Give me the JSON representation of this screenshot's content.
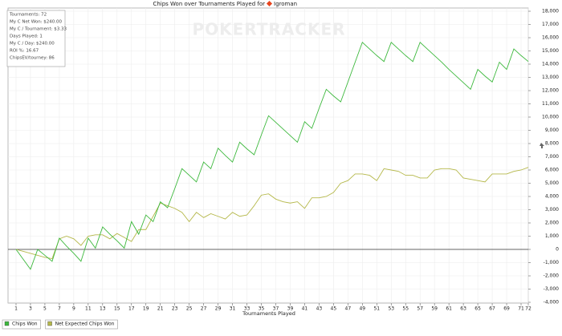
{
  "chart_data": {
    "type": "line",
    "title": "Chips Won over Tournaments Played for",
    "player": "Igroman",
    "watermark": "POKERTRACKER",
    "x_label": "Tournaments Played",
    "annotations": [
      "Tournaments: 72",
      "My C Net Won: $240.00",
      "My C / Tournament: $3.33",
      "Days Played: 1",
      "My C / Day: $240.00",
      "ROI %: 16.67",
      "ChipsEV/tourney: 86"
    ],
    "x": [
      1,
      2,
      3,
      4,
      5,
      6,
      7,
      8,
      9,
      10,
      11,
      12,
      13,
      14,
      15,
      16,
      17,
      18,
      19,
      20,
      21,
      22,
      23,
      24,
      25,
      26,
      27,
      28,
      29,
      30,
      31,
      32,
      33,
      34,
      35,
      36,
      37,
      38,
      39,
      40,
      41,
      42,
      43,
      44,
      45,
      46,
      47,
      48,
      49,
      50,
      51,
      52,
      53,
      54,
      55,
      56,
      57,
      58,
      59,
      60,
      61,
      62,
      63,
      64,
      65,
      66,
      67,
      68,
      69,
      70,
      71,
      72
    ],
    "xlim": [
      0,
      72
    ],
    "xticks": [
      1,
      3,
      5,
      7,
      9,
      11,
      13,
      15,
      17,
      19,
      21,
      23,
      25,
      27,
      29,
      31,
      33,
      35,
      37,
      39,
      41,
      43,
      45,
      47,
      49,
      51,
      53,
      55,
      57,
      59,
      61,
      63,
      65,
      67,
      69,
      71,
      72
    ],
    "ylim": [
      -4000,
      18000
    ],
    "yticks": [
      {
        "value": -4000,
        "label": "-4,000"
      },
      {
        "value": -3000,
        "label": "-3,000"
      },
      {
        "value": -2000,
        "label": "-2,000"
      },
      {
        "value": -1000,
        "label": "-1,000"
      },
      0,
      {
        "value": 1000,
        "label": "1,000"
      },
      {
        "value": 2000,
        "label": "2,000"
      },
      {
        "value": 3000,
        "label": "3,000"
      },
      {
        "value": 4000,
        "label": "4,000"
      },
      {
        "value": 5000,
        "label": "5,000"
      },
      {
        "value": 6000,
        "label": "6,000"
      },
      {
        "value": 7000,
        "label": "7,000"
      },
      {
        "value": 8000,
        "label": "8,000"
      },
      {
        "value": 9000,
        "label": "9,000"
      },
      {
        "value": 10000,
        "label": "10,000"
      },
      {
        "value": 11000,
        "label": "11,000"
      },
      {
        "value": 12000,
        "label": "12,000"
      },
      {
        "value": 13000,
        "label": "13,000"
      },
      {
        "value": 14000,
        "label": "14,000"
      },
      {
        "value": 15000,
        "label": "15,000"
      },
      {
        "value": 16000,
        "label": "16,000"
      },
      {
        "value": 17000,
        "label": "17,000"
      },
      {
        "value": 18000,
        "label": "18,000"
      }
    ],
    "grid": true,
    "series": [
      {
        "name": "Chips Won",
        "color": "#3cb83c",
        "values": [
          0,
          -750,
          -1500,
          0,
          -450,
          -900,
          850,
          250,
          -300,
          -900,
          850,
          100,
          1700,
          1150,
          650,
          100,
          2100,
          1150,
          2600,
          2100,
          3600,
          3150,
          4600,
          6100,
          5600,
          5100,
          6600,
          6100,
          7650,
          7100,
          6600,
          8100,
          7600,
          7150,
          8650,
          10100,
          9600,
          9100,
          8600,
          8100,
          9650,
          9150,
          10650,
          12100,
          11600,
          11150,
          12650,
          14150,
          15650,
          15150,
          14650,
          14200,
          15650,
          15150,
          14650,
          14200,
          15650,
          15150,
          14650,
          14150,
          13600,
          13100,
          12600,
          12100,
          13600,
          13100,
          12650,
          14150,
          13600,
          15150,
          14650,
          14200
        ]
      },
      {
        "name": "Net Expected Chips Won",
        "color": "#b5b84a",
        "values": [
          0,
          -150,
          -300,
          -450,
          -600,
          -700,
          800,
          1000,
          800,
          300,
          1000,
          1100,
          1100,
          800,
          1200,
          900,
          600,
          1500,
          1500,
          2500,
          3500,
          3300,
          3100,
          2800,
          2100,
          2800,
          2400,
          2700,
          2500,
          2300,
          2800,
          2500,
          2600,
          3300,
          4100,
          4200,
          3800,
          3600,
          3500,
          3600,
          3100,
          3900,
          3900,
          4000,
          4300,
          5000,
          5200,
          5700,
          5700,
          5600,
          5200,
          6100,
          6000,
          5900,
          5600,
          5600,
          5400,
          5400,
          6000,
          6100,
          6100,
          6000,
          5400,
          5300,
          5200,
          5100,
          5700,
          5700,
          5700,
          5900,
          6000,
          6200
        ]
      }
    ]
  }
}
